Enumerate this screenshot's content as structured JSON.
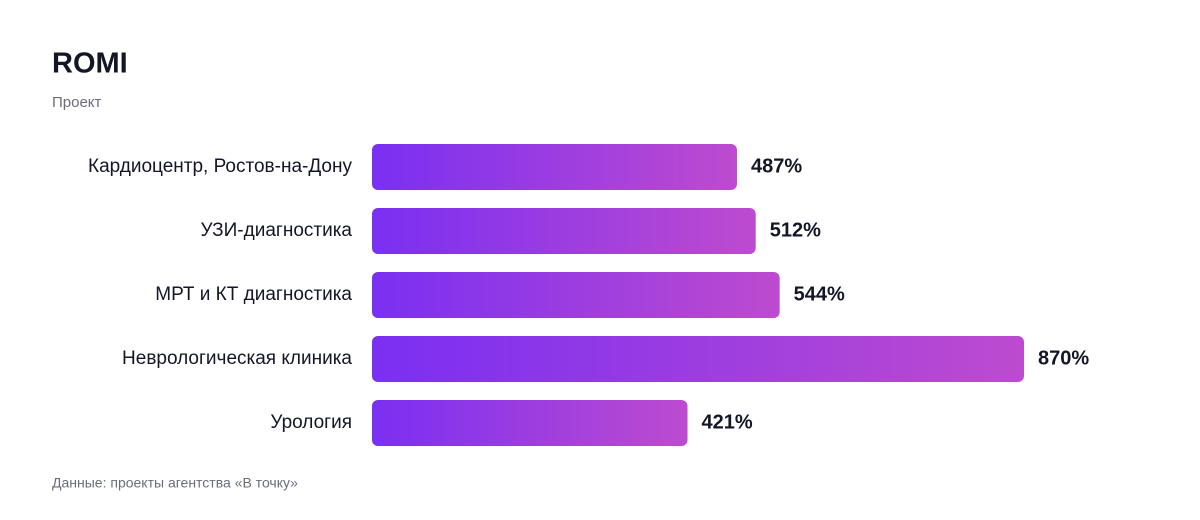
{
  "chart_data": {
    "type": "bar",
    "orientation": "horizontal",
    "title": "ROMI",
    "subtitle": "Проект",
    "source": "Данные: проекты агентства «В точку»",
    "categories": [
      "Кардиоцентр, Ростов-на-Дону",
      "УЗИ-диагностика",
      "МРТ и КТ диагностика",
      "Неврологическая клиника",
      "Урология"
    ],
    "values": [
      487,
      512,
      544,
      870,
      421
    ],
    "value_labels": [
      "487%",
      "512%",
      "544%",
      "870%",
      "421%"
    ],
    "colors": [
      "#7a2ff2",
      "#bd4bcf"
    ]
  }
}
